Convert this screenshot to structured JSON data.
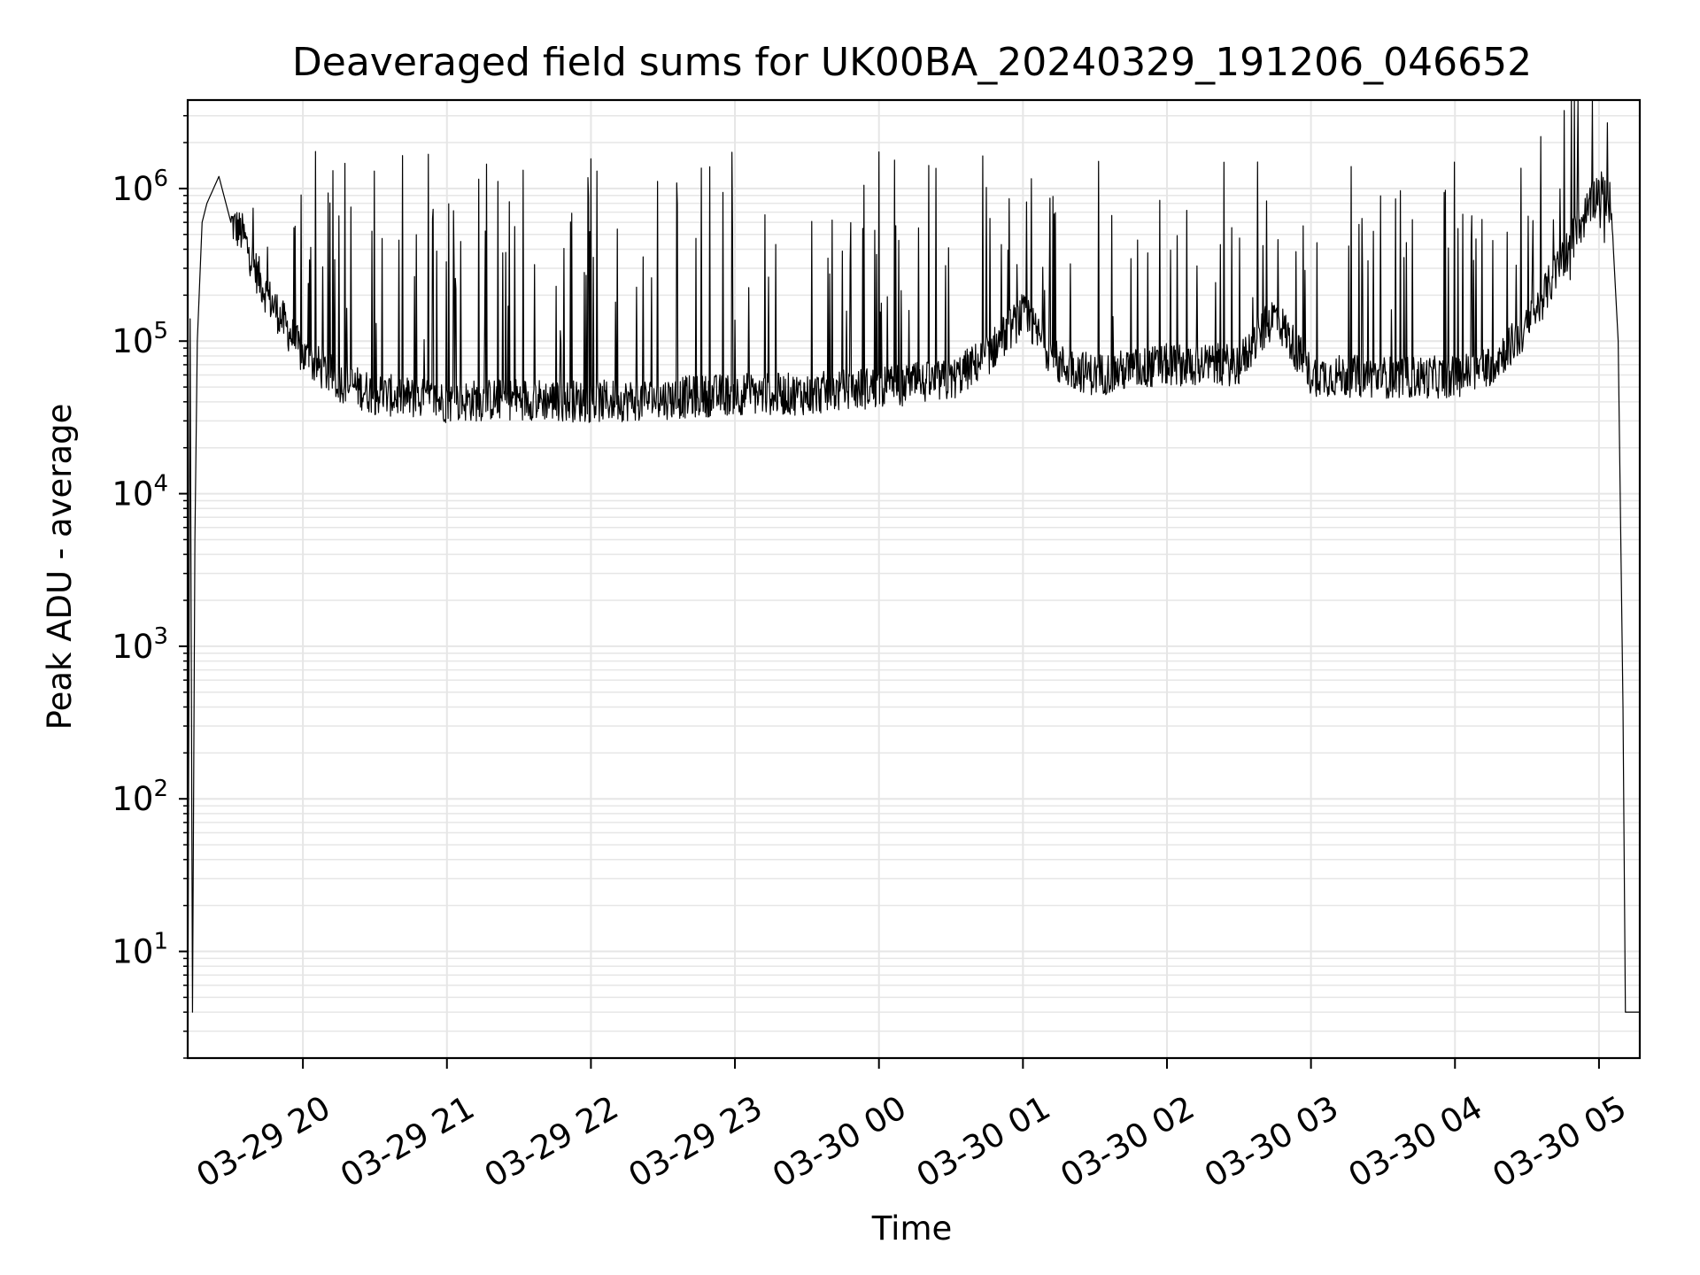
{
  "chart_data": {
    "type": "line",
    "title": "Deaveraged field sums for UK00BA_20240329_191206_046652",
    "xlabel": "Time",
    "ylabel": "Peak ADU - average",
    "yscale": "log",
    "ylim": [
      2,
      3800000
    ],
    "xlim": [
      "03-29 19:12",
      "03-30 05:17"
    ],
    "grid": true,
    "line_color": "#000000",
    "grid_color": "#e6e6e6",
    "x_ticks": [
      "03-29 20",
      "03-29 21",
      "03-29 22",
      "03-29 23",
      "03-30 00",
      "03-30 01",
      "03-30 02",
      "03-30 03",
      "03-30 04",
      "03-30 05"
    ],
    "y_ticks": [
      {
        "value": 10,
        "base": "10",
        "exp": "1"
      },
      {
        "value": 100,
        "base": "10",
        "exp": "2"
      },
      {
        "value": 1000,
        "base": "10",
        "exp": "3"
      },
      {
        "value": 10000,
        "base": "10",
        "exp": "4"
      },
      {
        "value": 100000,
        "base": "10",
        "exp": "5"
      },
      {
        "value": 1000000,
        "base": "10",
        "exp": "6"
      }
    ],
    "x": [
      "03-29 19:12",
      "03-29 19:13",
      "03-29 19:14",
      "03-29 19:15",
      "03-29 19:16",
      "03-29 19:18",
      "03-29 19:20",
      "03-29 19:25",
      "03-29 19:30",
      "03-29 19:35",
      "03-29 19:40",
      "03-29 19:45",
      "03-29 19:50",
      "03-29 20:00",
      "03-29 20:15",
      "03-29 20:30",
      "03-29 21:00",
      "03-29 21:30",
      "03-29 22:00",
      "03-29 22:30",
      "03-29 23:00",
      "03-29 23:30",
      "03-30 00:00",
      "03-30 00:30",
      "03-30 00:45",
      "03-30 01:00",
      "03-30 01:15",
      "03-30 01:30",
      "03-30 02:00",
      "03-30 02:30",
      "03-30 02:45",
      "03-30 03:00",
      "03-30 03:30",
      "03-30 04:00",
      "03-30 04:15",
      "03-30 04:30",
      "03-30 04:45",
      "03-30 04:55",
      "03-30 05:00",
      "03-30 05:05",
      "03-30 05:08",
      "03-30 05:10",
      "03-30 05:11",
      "03-30 05:12",
      "03-30 05:17"
    ],
    "y": [
      2,
      140000,
      4,
      5000,
      100000,
      600000,
      800000,
      1200000,
      600000,
      500000,
      300000,
      200000,
      150000,
      80000,
      55000,
      45000,
      40000,
      42000,
      40000,
      42000,
      45000,
      45000,
      50000,
      55000,
      80000,
      150000,
      70000,
      60000,
      70000,
      70000,
      150000,
      60000,
      58000,
      58000,
      70000,
      120000,
      350000,
      700000,
      1000000,
      800000,
      100000,
      400,
      4,
      4,
      4
    ]
  }
}
